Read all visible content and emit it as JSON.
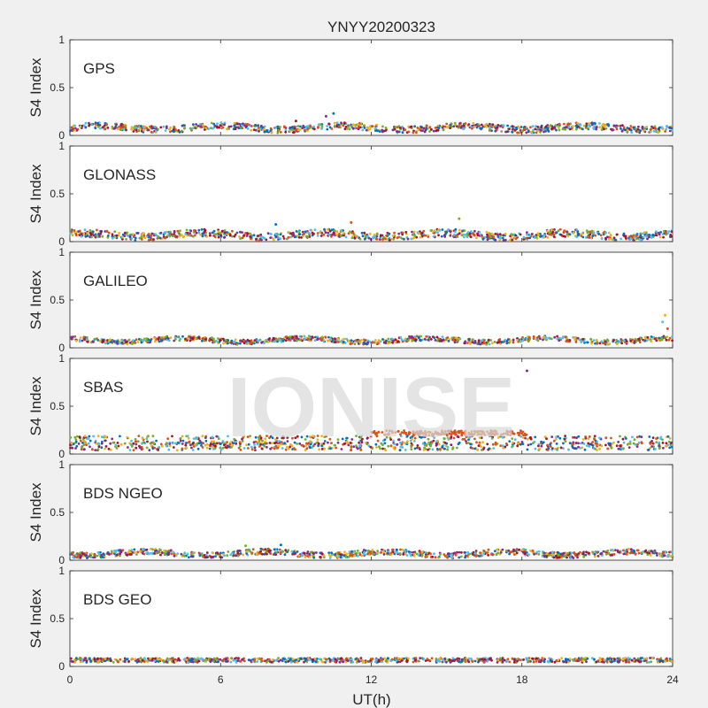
{
  "title": "YNYY20200323",
  "watermark": "IONISE",
  "xlabel": "UT(h)",
  "ylabel": "S4 Index",
  "xlim": [
    0,
    24
  ],
  "ylim": [
    0,
    1
  ],
  "xticks": [
    0,
    6,
    12,
    18,
    24
  ],
  "xtick_labels": [
    "0",
    "6",
    "12",
    "18",
    "24"
  ],
  "yticks": [
    0,
    0.5,
    1
  ],
  "ytick_labels": [
    "0",
    "0.5",
    "1"
  ],
  "series_colors": [
    "#0072BD",
    "#D95319",
    "#EDB120",
    "#7E2F8E",
    "#77AC30",
    "#4DBEEE",
    "#A2142F"
  ],
  "chart_data": [
    {
      "type": "scatter",
      "panel_label": "GPS",
      "xlim": [
        0,
        24
      ],
      "ylim": [
        0,
        1
      ],
      "baseline": 0.08,
      "spread": 0.035,
      "spikes": [
        {
          "x": 10.5,
          "y": 0.23
        },
        {
          "x": 10.2,
          "y": 0.2
        },
        {
          "x": 9.0,
          "y": 0.15
        }
      ]
    },
    {
      "type": "scatter",
      "panel_label": "GLONASS",
      "xlim": [
        0,
        24
      ],
      "ylim": [
        0,
        1
      ],
      "baseline": 0.07,
      "spread": 0.04,
      "spikes": [
        {
          "x": 11.2,
          "y": 0.2
        },
        {
          "x": 15.5,
          "y": 0.24
        },
        {
          "x": 8.2,
          "y": 0.18
        }
      ]
    },
    {
      "type": "scatter",
      "panel_label": "GALILEO",
      "xlim": [
        0,
        24
      ],
      "ylim": [
        0,
        1
      ],
      "baseline": 0.08,
      "spread": 0.025,
      "spikes": [
        {
          "x": 23.7,
          "y": 0.34
        },
        {
          "x": 23.6,
          "y": 0.27
        },
        {
          "x": 23.8,
          "y": 0.2
        }
      ]
    },
    {
      "type": "scatter",
      "panel_label": "SBAS",
      "xlim": [
        0,
        24
      ],
      "ylim": [
        0,
        1
      ],
      "baseline": 0.12,
      "spread": 0.02,
      "levels": [
        0.17,
        0.12,
        0.1,
        0.06
      ],
      "band": {
        "x_start": 12,
        "x_end": 18.2,
        "y": 0.22
      },
      "spikes": [
        {
          "x": 18.2,
          "y": 0.87
        }
      ]
    },
    {
      "type": "scatter",
      "panel_label": "BDS NGEO",
      "xlim": [
        0,
        24
      ],
      "ylim": [
        0,
        1
      ],
      "baseline": 0.07,
      "spread": 0.03,
      "spikes": [
        {
          "x": 7.0,
          "y": 0.15
        },
        {
          "x": 8.4,
          "y": 0.16
        }
      ]
    },
    {
      "type": "scatter",
      "panel_label": "BDS GEO",
      "xlim": [
        0,
        24
      ],
      "ylim": [
        0,
        1
      ],
      "baseline": 0.07,
      "spread": 0.008,
      "levels": [
        0.08,
        0.065,
        0.05
      ],
      "spikes": []
    }
  ]
}
